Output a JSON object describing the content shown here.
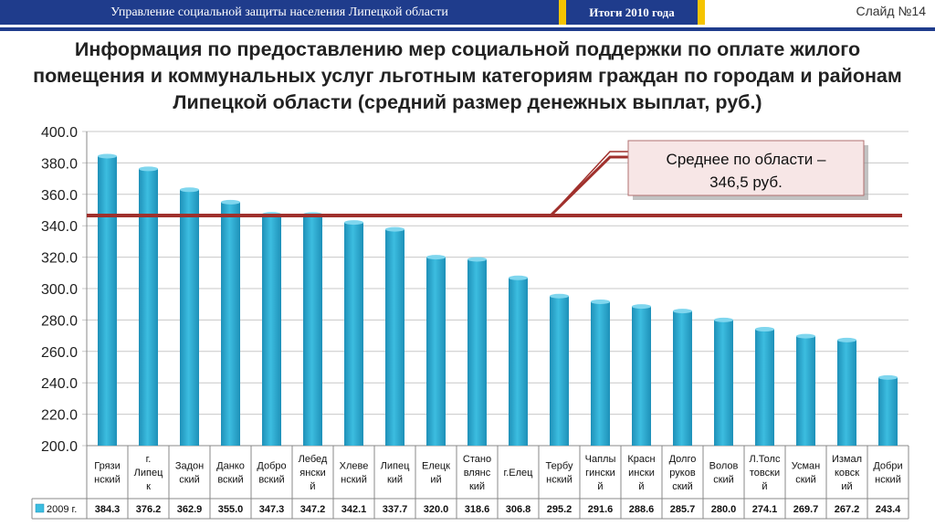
{
  "header": {
    "org": "Управление социальной защиты населения Липецкой области",
    "year_label": "Итоги 2010 года",
    "slide": "Слайд №14"
  },
  "title": "Информация по предоставлению мер социальной поддержки по оплате жилого помещения и коммунальных услуг льготным категориям граждан по городам и районам Липецкой области (средний размер денежных выплат, руб.)",
  "callout": {
    "line1": "Среднее по области –",
    "line2": "346,5 руб."
  },
  "colors": {
    "bar": "#3cbde0",
    "bar_dark": "#1e90b8",
    "avg_line": "#a0302c",
    "header": "#1f3c8c",
    "accent": "#f5c400"
  },
  "chart_data": {
    "type": "bar",
    "title": "",
    "xlabel": "",
    "ylabel": "",
    "ylim": [
      200,
      400
    ],
    "yticks": [
      "200.0",
      "220.0",
      "240.0",
      "260.0",
      "280.0",
      "300.0",
      "320.0",
      "340.0",
      "360.0",
      "380.0",
      "400.0"
    ],
    "categories": [
      [
        "Грязи",
        "нский"
      ],
      [
        "г.",
        "Липец",
        "к"
      ],
      [
        "Задон",
        "ский"
      ],
      [
        "Данко",
        "вский"
      ],
      [
        "Добро",
        "вский"
      ],
      [
        "Лебед",
        "янски",
        "й"
      ],
      [
        "Хлеве",
        "нский"
      ],
      [
        "Липец",
        "кий"
      ],
      [
        "Елецк",
        "ий"
      ],
      [
        "Стано",
        "влянс",
        "кий"
      ],
      [
        "г.Елец"
      ],
      [
        "Тербу",
        "нский"
      ],
      [
        "Чаплы",
        "гински",
        "й"
      ],
      [
        "Красн",
        "ински",
        "й"
      ],
      [
        "Долго",
        "руков",
        "ский"
      ],
      [
        "Волов",
        "ский"
      ],
      [
        "Л.Толс",
        "товски",
        "й"
      ],
      [
        "Усман",
        "ский"
      ],
      [
        "Измал",
        "ковск",
        "ий"
      ],
      [
        "Добри",
        "нский"
      ]
    ],
    "series": [
      {
        "name": "2009 г.",
        "values": [
          384.3,
          376.2,
          362.9,
          355.0,
          347.3,
          347.2,
          342.1,
          337.7,
          320.0,
          318.6,
          306.8,
          295.2,
          291.6,
          288.6,
          285.7,
          280.0,
          274.1,
          269.7,
          267.2,
          243.4
        ]
      }
    ],
    "value_labels": [
      "384.3",
      "376.2",
      "362.9",
      "355.0",
      "347.3",
      "347.2",
      "342.1",
      "337.7",
      "320.0",
      "318.6",
      "306.8",
      "295.2",
      "291.6",
      "288.6",
      "285.7",
      "280.0",
      "274.1",
      "269.7",
      "267.2",
      "243.4"
    ],
    "average": 346.5,
    "grid": true
  }
}
